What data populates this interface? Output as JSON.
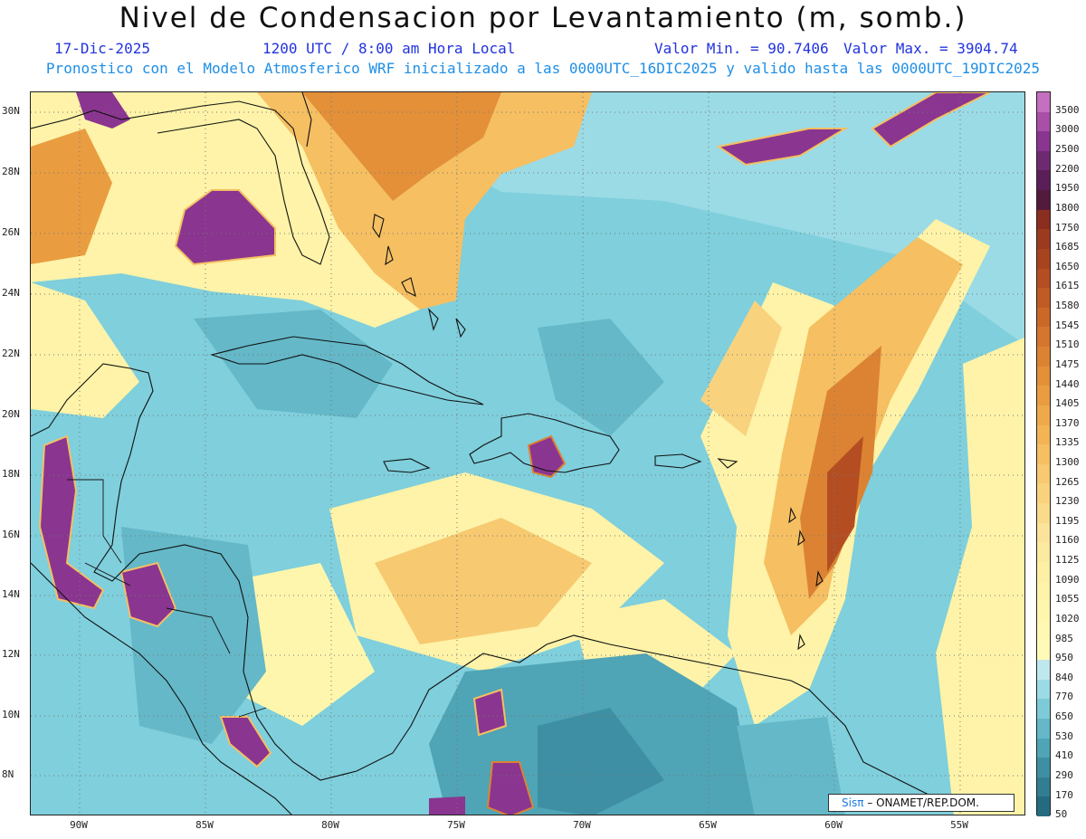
{
  "header": {
    "title": "Nivel de Condensacion por Levantamiento (m, somb.)",
    "date": "17-Dic-2025",
    "time": "1200 UTC / 8:00 am Hora Local",
    "vmin": "Valor Min. = 90.7406",
    "vmax": "Valor Max. = 3904.74",
    "forecast": "Pronostico con el Modelo Atmosferico WRF inicializado a las 0000UTC_16DIC2025 y valido hasta las  0000UTC_19DIC2025"
  },
  "axes": {
    "lat_labels": [
      "30N",
      "28N",
      "26N",
      "24N",
      "22N",
      "20N",
      "18N",
      "16N",
      "14N",
      "12N",
      "10N",
      "8N"
    ],
    "lon_labels": [
      "90W",
      "85W",
      "80W",
      "75W",
      "70W",
      "65W",
      "60W",
      "55W"
    ]
  },
  "colorbar": {
    "labels": [
      "3500",
      "3000",
      "2500",
      "2200",
      "1950",
      "1800",
      "1750",
      "1685",
      "1650",
      "1615",
      "1580",
      "1545",
      "1510",
      "1475",
      "1440",
      "1405",
      "1370",
      "1335",
      "1300",
      "1265",
      "1230",
      "1195",
      "1160",
      "1125",
      "1090",
      "1055",
      "1020",
      "985",
      "950",
      "840",
      "770",
      "650",
      "530",
      "410",
      "290",
      "170",
      "50"
    ],
    "colors": [
      "#c46fc0",
      "#aa4fa8",
      "#8a3590",
      "#6e2a70",
      "#5a1f58",
      "#521a3c",
      "#8b2d1f",
      "#9b3a1f",
      "#a8431f",
      "#b44e22",
      "#c05b25",
      "#cb6828",
      "#d4762d",
      "#dc8333",
      "#e39039",
      "#e99d40",
      "#eea94a",
      "#f2b455",
      "#f5bf62",
      "#f7c970",
      "#f9d27e",
      "#fadb8c",
      "#fbe39b",
      "#fcea9f",
      "#fdefa3",
      "#fef3a8",
      "#fef6ad",
      "#fff8b2",
      "#fffab8",
      "#bfe8ee",
      "#9bdbe6",
      "#7dcbd8",
      "#64b8c8",
      "#4fa4b6",
      "#3e8fa3",
      "#317e93",
      "#246b80"
    ]
  },
  "credit": {
    "brand": "Sisπ",
    "text": "– ONAMET/REP.DOM."
  }
}
